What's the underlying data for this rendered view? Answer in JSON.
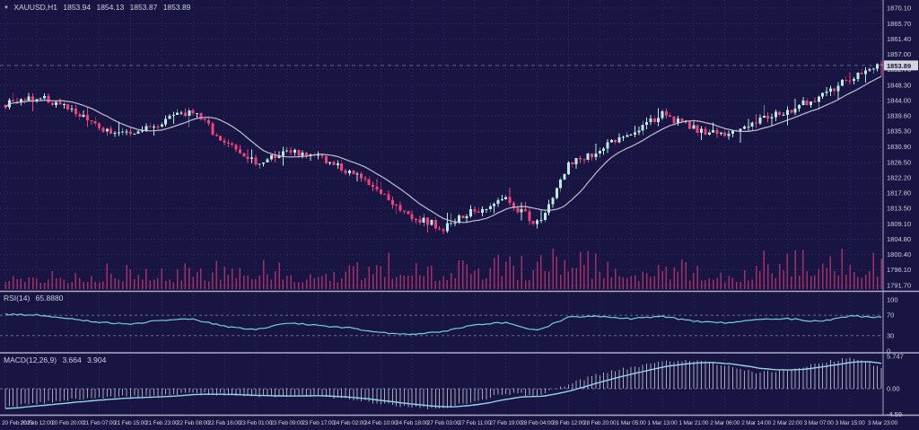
{
  "chart_data": {
    "type": "candlestick",
    "platform_theme": "metatrader-dark",
    "header": {
      "marker_icon": "▼",
      "symbol": "XAUUSD,H1",
      "open": "1853.94",
      "high": "1854.13",
      "low": "1853.87",
      "close": "1853.89"
    },
    "price_axis": {
      "ticks": [
        "1870.10",
        "1865.70",
        "1861.40",
        "1857.00",
        "1852.70",
        "1848.30",
        "1844.00",
        "1839.60",
        "1835.30",
        "1830.90",
        "1826.50",
        "1822.20",
        "1817.80",
        "1813.50",
        "1809.10",
        "1804.80",
        "1800.40",
        "1796.10",
        "1791.70"
      ],
      "current_price": 1853.89,
      "current_price_label": "1853.89"
    },
    "time_axis": {
      "labels": [
        "20 Feb 2023",
        "20 Feb 12:00",
        "20 Feb 20:00",
        "21 Feb 07:00",
        "21 Feb 15:00",
        "21 Feb 23:00",
        "22 Feb 08:00",
        "22 Feb 16:00",
        "23 Feb 01:00",
        "23 Feb 09:00",
        "23 Feb 17:00",
        "24 Feb 02:00",
        "24 Feb 10:00",
        "24 Feb 18:00",
        "27 Feb 03:00",
        "27 Feb 11:00",
        "27 Feb 19:00",
        "28 Feb 04:00",
        "28 Feb 12:00",
        "28 Feb 20:00",
        "1 Mar 05:00",
        "1 Mar 13:00",
        "1 Mar 21:00",
        "2 Mar 06:00",
        "2 Mar 14:00",
        "2 Mar 22:00",
        "3 Mar 07:00",
        "3 Mar 15:00",
        "3 Mar 23:00"
      ]
    },
    "series": {
      "candles_per_segment": 8,
      "close_anchors": [
        1843,
        1845,
        1842,
        1836,
        1834,
        1838,
        1841,
        1832,
        1826,
        1830,
        1828,
        1824,
        1818,
        1811,
        1808,
        1813,
        1816,
        1809,
        1826,
        1830,
        1835,
        1840,
        1836,
        1834,
        1838,
        1841,
        1845,
        1850,
        1853.89
      ],
      "volume_rel_anchors": [
        0.3,
        0.25,
        0.3,
        0.4,
        0.5,
        0.35,
        0.4,
        0.45,
        0.55,
        0.35,
        0.3,
        0.4,
        0.7,
        0.6,
        0.35,
        0.45,
        0.5,
        0.45,
        0.85,
        0.55,
        0.4,
        0.55,
        0.45,
        0.35,
        0.5,
        0.8,
        0.55,
        0.6,
        0.75
      ]
    },
    "indicators": {
      "ma": {
        "name": "moving-average",
        "period": 14
      },
      "volume": {
        "name": "volume"
      },
      "rsi": {
        "label": "RSI(14)",
        "value": "65.8880",
        "value_num": 65.888,
        "axis_ticks": [
          "100",
          "70",
          "30",
          "0"
        ],
        "axis_tick_values": [
          100,
          70,
          30,
          0
        ],
        "levels": [
          70,
          30
        ],
        "anchors": [
          72,
          70,
          64,
          56,
          52,
          60,
          62,
          48,
          42,
          55,
          50,
          45,
          36,
          33,
          38,
          52,
          56,
          40,
          66,
          68,
          63,
          68,
          58,
          55,
          61,
          63,
          58,
          68,
          65.9
        ]
      },
      "macd": {
        "label": "MACD(12,26,9)",
        "main": "3.664",
        "signal": "3.904",
        "main_num": 3.664,
        "axis_ticks": [
          "5.747",
          "0.00",
          "-4.59"
        ],
        "axis_tick_values": [
          5.747,
          0,
          -4.59
        ],
        "anchors": [
          -3.3,
          -2.6,
          -2.0,
          -1.6,
          -1.4,
          -1.2,
          -0.8,
          -1.0,
          -1.4,
          -1.2,
          -1.3,
          -1.8,
          -2.6,
          -3.3,
          -3.6,
          -2.2,
          -0.8,
          -1.2,
          0.8,
          2.6,
          3.8,
          4.8,
          5.1,
          4.2,
          2.8,
          3.2,
          4.6,
          5.4,
          3.9
        ]
      }
    },
    "colors": {
      "background": "#181542",
      "grid": "#312e66",
      "bull": "#b9eae3",
      "bear": "#f0437c",
      "ma_line": "#c9c6da",
      "volume": "#a13067",
      "rsi_line": "#74cfdb",
      "level_line": "#8a88b0",
      "macd_histogram": "#d6d9ea",
      "macd_signal": "#8fd8e8",
      "axis_text": "#cfcfdf",
      "separator": "#aaa8c4",
      "price_tag_bg": "#d4d4de",
      "price_tag_text": "#14123a"
    }
  }
}
